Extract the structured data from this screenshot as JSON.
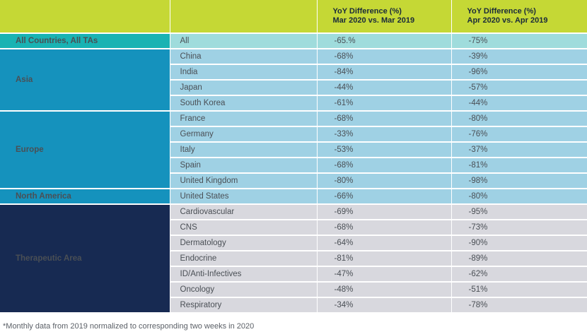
{
  "table": {
    "header": {
      "col1": "",
      "col2": "",
      "col3_line1": "YoY Difference (%)",
      "col3_line2": "Mar 2020 vs. Mar 2019",
      "col4_line1": "YoY Difference (%)",
      "col4_line2": "Apr 2020 vs. Apr 2019"
    },
    "groups": [
      {
        "label": "All Countries, All TAs",
        "color": "#19b3b3",
        "rows": [
          {
            "name": "All",
            "mar": "-65.%",
            "apr": "-75%"
          }
        ]
      },
      {
        "label": "Asia",
        "color": "#1592bd",
        "rows": [
          {
            "name": "China",
            "mar": "-68%",
            "apr": "-39%"
          },
          {
            "name": "India",
            "mar": "-84%",
            "apr": "-96%"
          },
          {
            "name": "Japan",
            "mar": "-44%",
            "apr": "-57%"
          },
          {
            "name": "South Korea",
            "mar": "-61%",
            "apr": "-44%"
          }
        ]
      },
      {
        "label": "Europe",
        "color": "#1592bd",
        "rows": [
          {
            "name": "France",
            "mar": "-68%",
            "apr": "-80%"
          },
          {
            "name": "Germany",
            "mar": "-33%",
            "apr": "-76%"
          },
          {
            "name": "Italy",
            "mar": "-53%",
            "apr": "-37%"
          },
          {
            "name": "Spain",
            "mar": "-68%",
            "apr": "-81%"
          },
          {
            "name": "United Kingdom",
            "mar": "-80%",
            "apr": "-98%"
          }
        ]
      },
      {
        "label": "North America",
        "color": "#1592bd",
        "rows": [
          {
            "name": "United States",
            "mar": "-66%",
            "apr": "-80%"
          }
        ]
      },
      {
        "label": "Therapeutic Area",
        "color": "#172a52",
        "rows": [
          {
            "name": "Cardiovascular",
            "mar": "-69%",
            "apr": "-95%"
          },
          {
            "name": "CNS",
            "mar": "-68%",
            "apr": "-73%"
          },
          {
            "name": "Dermatology",
            "mar": "-64%",
            "apr": "-90%"
          },
          {
            "name": "Endocrine",
            "mar": "-81%",
            "apr": "-89%"
          },
          {
            "name": "ID/Anti-Infectives",
            "mar": "-47%",
            "apr": "-62%"
          },
          {
            "name": "Oncology",
            "mar": "-48%",
            "apr": "-51%"
          },
          {
            "name": "Respiratory",
            "mar": "-34%",
            "apr": "-78%"
          }
        ]
      }
    ]
  },
  "footnote": "*Monthly data from 2019 normalized to corresponding two weeks in 2020"
}
